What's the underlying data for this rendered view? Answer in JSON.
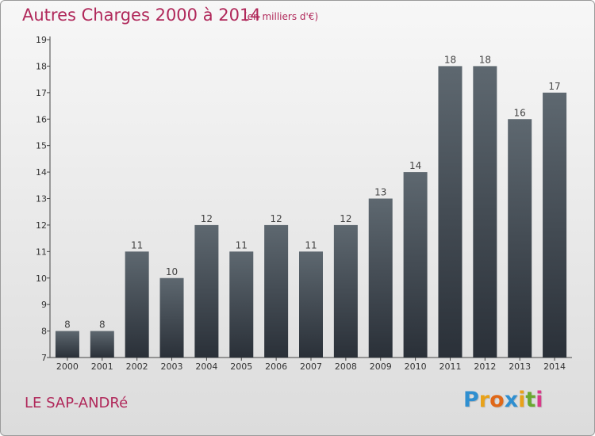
{
  "header": {
    "title": "Autres Charges 2000 à 2014",
    "subtitle": "(en milliers d'€)"
  },
  "footer": {
    "commune": "LE SAP-ANDRé",
    "logo_letters": [
      "P",
      "r",
      "o",
      "x",
      "i",
      "t",
      "i"
    ],
    "logo_colors": [
      "#2f8fd0",
      "#e8a21a",
      "#e06818",
      "#2f8fd0",
      "#e8a21a",
      "#6aa830",
      "#d83a8a"
    ]
  },
  "chart_data": {
    "type": "bar",
    "title": "Autres Charges 2000 à 2014",
    "subtitle": "(en milliers d'€)",
    "xlabel": "",
    "ylabel": "",
    "categories": [
      "2000",
      "2001",
      "2002",
      "2003",
      "2004",
      "2005",
      "2006",
      "2007",
      "2008",
      "2009",
      "2010",
      "2011",
      "2012",
      "2013",
      "2014"
    ],
    "values": [
      8,
      8,
      11,
      10,
      12,
      11,
      12,
      11,
      12,
      13,
      14,
      18,
      18,
      16,
      17
    ],
    "ylim": [
      7,
      19
    ],
    "yticks": [
      7,
      8,
      9,
      10,
      11,
      12,
      13,
      14,
      15,
      16,
      17,
      18,
      19
    ],
    "grid": false,
    "colors": {
      "bar_top": "#5e6870",
      "bar_bottom": "#2a3038",
      "axis": "#444444"
    }
  }
}
